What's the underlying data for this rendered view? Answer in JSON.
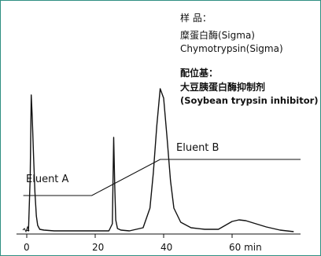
{
  "chart_data": {
    "type": "line",
    "title": "",
    "xlabel": "",
    "ylabel": "",
    "x_unit_label": "min",
    "xlim": [
      -3,
      80
    ],
    "x_ticks": [
      0,
      20,
      40,
      60
    ],
    "x_tick_labels": [
      "0",
      "20",
      "40",
      "60 min"
    ],
    "series": [
      {
        "name": "",
        "role": "absorbance trace",
        "x": [
          0.0,
          0.5,
          1.0,
          1.3,
          1.6,
          2.0,
          2.4,
          2.8,
          3.2,
          3.8,
          5.0,
          8.0,
          14.0,
          20.0,
          24.0,
          25.0,
          25.4,
          25.7,
          26.0,
          26.5,
          27.5,
          30.0,
          34.0,
          36.0,
          37.0,
          38.0,
          39.0,
          40.0,
          41.0,
          42.0,
          43.0,
          45.0,
          48.0,
          52.0,
          56.0,
          58.0,
          60.0,
          62.0,
          64.0,
          67.0,
          70.0,
          74.0,
          78.0
        ],
        "y": [
          2,
          1,
          70,
          174,
          145,
          95,
          50,
          20,
          8,
          3,
          2,
          1,
          1,
          1,
          1,
          10,
          120,
          60,
          15,
          4,
          2,
          1,
          5,
          30,
          75,
          135,
          182,
          170,
          120,
          65,
          30,
          12,
          5,
          3,
          3,
          8,
          13,
          15,
          14,
          10,
          6,
          2,
          0
        ]
      },
      {
        "name": "",
        "role": "gradient line",
        "x": [
          -1,
          19,
          39,
          80
        ],
        "y": [
          46,
          46,
          92,
          92
        ]
      }
    ],
    "annotations": {
      "eluent_a": "Eluent A",
      "eluent_b": "Eluent B",
      "sample_heading": "样 品：",
      "sample_cn": "糜蛋白酶(Sigma)",
      "sample_en": "Chymotrypsin(Sigma)",
      "ligand_heading": "配位基：",
      "ligand_cn": "大豆胰蛋白酶抑制剂",
      "ligand_en": "(Soybean  trypsin inhibitor)"
    },
    "grid": false,
    "legend": "none"
  },
  "colors": {
    "frame": "#2f8f82",
    "line": "#111111",
    "background": "#ffffff"
  }
}
